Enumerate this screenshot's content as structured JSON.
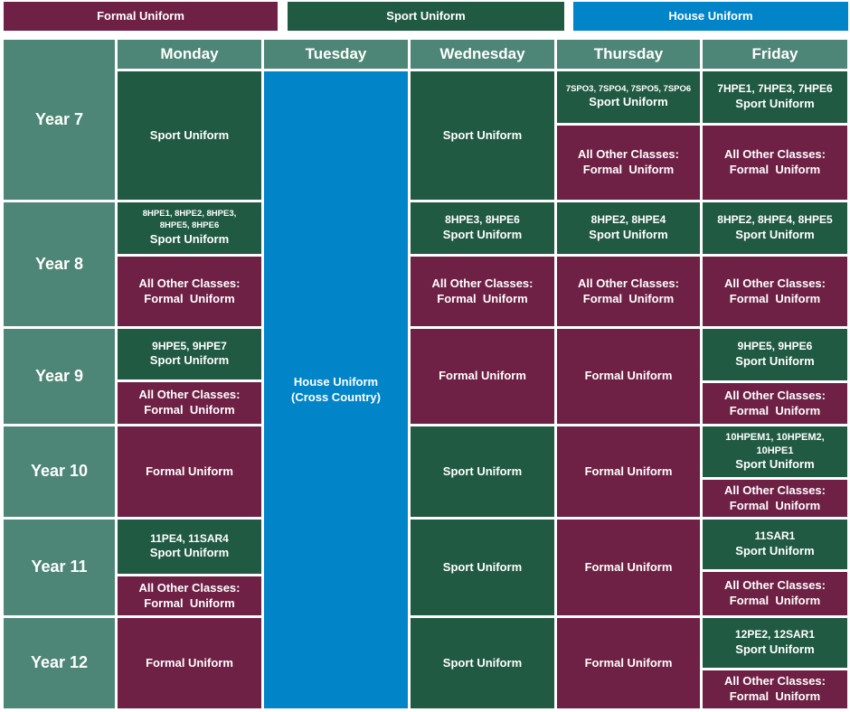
{
  "legend": {
    "formal": "Formal Uniform",
    "sport": "Sport Uniform",
    "house": "House Uniform"
  },
  "colors": {
    "formal": "#6e2045",
    "sport": "#215a43",
    "house": "#0284c9",
    "header": "#4d8676"
  },
  "days": [
    "Monday",
    "Tuesday",
    "Wednesday",
    "Thursday",
    "Friday"
  ],
  "years": [
    "Year 7",
    "Year 8",
    "Year 9",
    "Year 10",
    "Year 11",
    "Year 12"
  ],
  "labels": {
    "sport": "Sport Uniform",
    "formal": "Formal Uniform",
    "all_other": "All Other Classes:",
    "formal_spaced": "Formal  Uniform"
  },
  "tuesday": {
    "line1": "House Uniform",
    "line2": "(Cross Country)"
  },
  "classes": {
    "y7_thu": "7SPO3, 7SPO4, 7SPO5, 7SPO6",
    "y7_fri": "7HPE1, 7HPE3, 7HPE6",
    "y8_mon": "8HPE1, 8HPE2, 8HPE3, 8HPE5, 8HPE6",
    "y8_wed": "8HPE3, 8HPE6",
    "y8_thu": "8HPE2, 8HPE4",
    "y8_fri": "8HPE2, 8HPE4, 8HPE5",
    "y9_mon": "9HPE5, 9HPE7",
    "y9_fri": "9HPE5, 9HPE6",
    "y10_fri": "10HPEM1, 10HPEM2, 10HPE1",
    "y11_mon": "11PE4, 11SAR4",
    "y11_fri": "11SAR1",
    "y12_fri": "12PE2, 12SAR1"
  }
}
